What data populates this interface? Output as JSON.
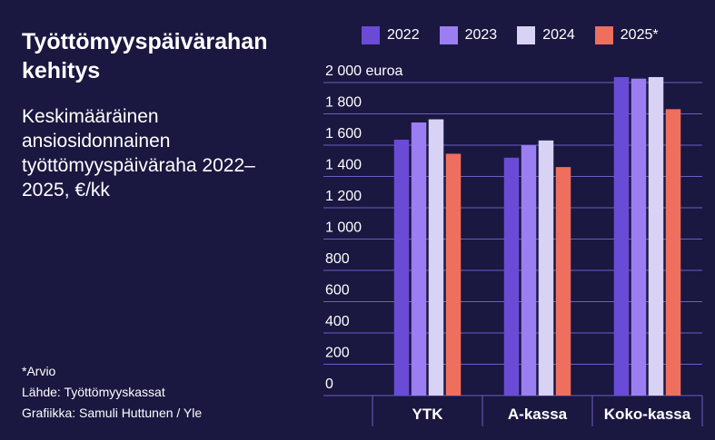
{
  "title": "Työttömyyspäivärahan kehitys",
  "subtitle": "Keskimääräinen ansiosidonnainen työttömyyspäiväraha 2022–2025, €/kk",
  "notes": {
    "estimate": "*Arvio",
    "source": "Lähde: Työttömyyskassat",
    "credit": "Grafiikka: Samuli Huttunen / Yle"
  },
  "chart_data": {
    "type": "bar",
    "categories": [
      "YTK",
      "A-kassa",
      "Koko-kassa"
    ],
    "series": [
      {
        "name": "2022",
        "color": "#6a4bd6",
        "values": [
          1635,
          1520,
          2035
        ]
      },
      {
        "name": "2023",
        "color": "#9b7ff2",
        "values": [
          1745,
          1600,
          2025
        ]
      },
      {
        "name": "2024",
        "color": "#d8d2f5",
        "values": [
          1765,
          1630,
          2035
        ]
      },
      {
        "name": "2025*",
        "color": "#ef6f5e",
        "values": [
          1545,
          1460,
          1830
        ]
      }
    ],
    "ylim": [
      0,
      2000
    ],
    "yticks": [
      0,
      200,
      400,
      600,
      800,
      1000,
      1200,
      1400,
      1600,
      1800,
      2000
    ],
    "ytick_labels": [
      "0",
      "200",
      "400",
      "600",
      "800",
      "1 000",
      "1 200",
      "1 400",
      "1 600",
      "1 800",
      "2 000 euroa"
    ],
    "grid": true,
    "legend_position": "top-right",
    "xlabel": "",
    "ylabel": ""
  }
}
